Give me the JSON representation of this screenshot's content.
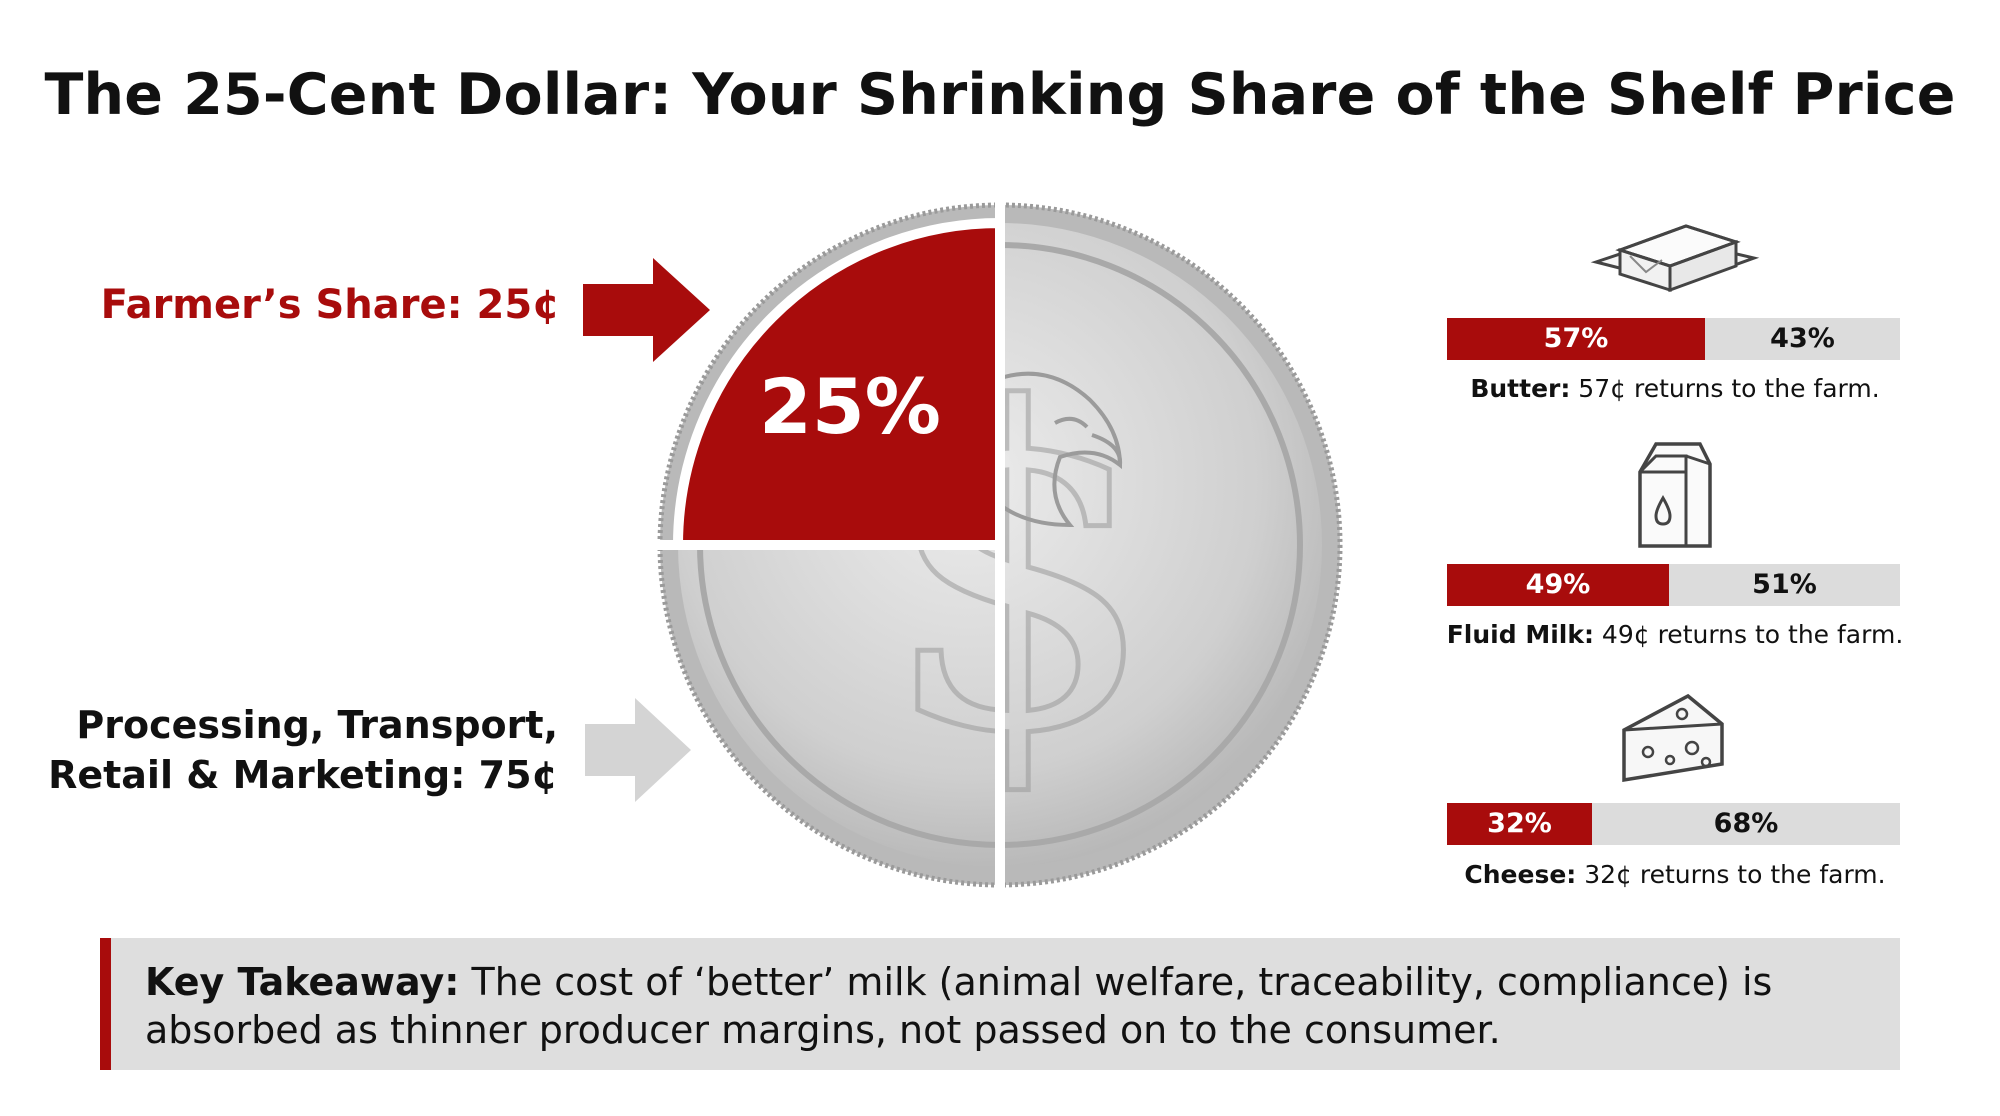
{
  "title": "The 25-Cent Dollar: Your Shrinking Share of the Shelf Price",
  "coin_label": "25%",
  "farmer_label": "Farmer’s Share: 25¢",
  "others_label_line1": "Processing, Transport,",
  "others_label_line2": "Retail & Marketing: 75¢",
  "colors": {
    "accent": "#a80c0c",
    "bar_rest": "#dcdcdc",
    "coin": "#c8c8c8",
    "takeaway_bg": "#dedede"
  },
  "products": [
    {
      "icon": "butter-icon",
      "farm_label": "57%",
      "rest_label": "43%",
      "name": "Butter:",
      "caption": " 57¢ returns to the farm."
    },
    {
      "icon": "milk-carton-icon",
      "farm_label": "49%",
      "rest_label": "51%",
      "name": "Fluid Milk:",
      "caption": " 49¢ returns to the farm."
    },
    {
      "icon": "cheese-icon",
      "farm_label": "32%",
      "rest_label": "68%",
      "name": "Cheese:",
      "caption": " 32¢ returns to the farm."
    }
  ],
  "takeaway": {
    "lead": "Key Takeaway:",
    "text": " The cost of ‘better’ milk (animal welfare, traceability, compliance) is absorbed as thinner producer margins, not passed on to the consumer."
  },
  "chart_data": [
    {
      "type": "pie",
      "labels": [
        "Farmer’s Share",
        "Processing, Transport, Retail & Marketing"
      ],
      "values": [
        25,
        75
      ],
      "unit": "¢"
    },
    {
      "type": "bar",
      "categories": [
        "Butter",
        "Fluid Milk",
        "Cheese"
      ],
      "stacked": true,
      "series": [
        {
          "values": [
            57,
            49,
            32
          ]
        },
        {
          "values": [
            43,
            51,
            68
          ]
        }
      ]
    }
  ]
}
